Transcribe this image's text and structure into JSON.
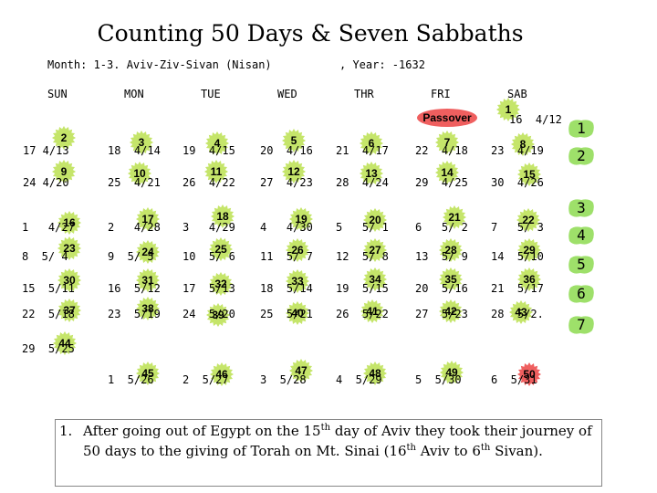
{
  "title": "Counting 50 Days & Seven Sabbaths",
  "month_label": "Month: 1-3. Aviv-Ziv-Sivan (Nisan)",
  "year_label": ", Year: -1632",
  "weekdays": [
    "SUN",
    "MON",
    "TUE",
    "WED",
    "THR",
    "FRI",
    "SAB"
  ],
  "passover": "Passover",
  "colors": {
    "star_green": "#c5e56a",
    "star_red": "#ef5f5f",
    "sabbath_green": "#9ee06a"
  },
  "counts": [
    {
      "n": "1",
      "date": "16  4/12",
      "red": false
    },
    {
      "n": "2",
      "date": "17 4/13",
      "red": false
    },
    {
      "n": "3",
      "date": "18  4/14",
      "red": false
    },
    {
      "n": "4",
      "date": "19  4/15",
      "red": false
    },
    {
      "n": "5",
      "date": "20  4/16",
      "red": false
    },
    {
      "n": "6",
      "date": "21  4/17",
      "red": false
    },
    {
      "n": "7",
      "date": "22  4/18",
      "red": false
    },
    {
      "n": "8",
      "date": "23  4/19",
      "red": false
    },
    {
      "n": "9",
      "date": "24 4/20",
      "red": false
    },
    {
      "n": "10",
      "date": "25  4/21",
      "red": false
    },
    {
      "n": "11",
      "date": "26  4/22",
      "red": false
    },
    {
      "n": "12",
      "date": "27  4/23",
      "red": false
    },
    {
      "n": "13",
      "date": "28  4/24",
      "red": false
    },
    {
      "n": "14",
      "date": "29  4/25",
      "red": false
    },
    {
      "n": "15",
      "date": "30  4/26",
      "red": false
    },
    {
      "n": "16",
      "date": "1   4/27",
      "red": false
    },
    {
      "n": "17",
      "date": "2   4/28",
      "red": false
    },
    {
      "n": "18",
      "date": "3   4/29",
      "red": false
    },
    {
      "n": "19",
      "date": "4   4/30",
      "red": false
    },
    {
      "n": "20",
      "date": "5   5/ 1",
      "red": false
    },
    {
      "n": "21",
      "date": "6   5/ 2",
      "red": false
    },
    {
      "n": "22",
      "date": "7   5/ 3",
      "red": false
    },
    {
      "n": "23",
      "date": "8  5/ 4",
      "red": false
    },
    {
      "n": "24",
      "date": "9  5/ 5",
      "red": false
    },
    {
      "n": "25",
      "date": "10  5/ 6",
      "red": false
    },
    {
      "n": "26",
      "date": "11  5/ 7",
      "red": false
    },
    {
      "n": "27",
      "date": "12  5/ 8",
      "red": false
    },
    {
      "n": "28",
      "date": "13  5/ 9",
      "red": false
    },
    {
      "n": "29",
      "date": "14  5/10",
      "red": false
    },
    {
      "n": "30",
      "date": "15  5/11",
      "red": false
    },
    {
      "n": "31",
      "date": "16  5/12",
      "red": false
    },
    {
      "n": "32",
      "date": "17  5/13",
      "red": false
    },
    {
      "n": "33",
      "date": "18  5/14",
      "red": false
    },
    {
      "n": "34",
      "date": "19  5/15",
      "red": false
    },
    {
      "n": "35",
      "date": "20  5/16",
      "red": false
    },
    {
      "n": "36",
      "date": "21  5/17",
      "red": false
    },
    {
      "n": "37",
      "date": "22  5/18",
      "red": false
    },
    {
      "n": "38",
      "date": "23  5/19",
      "red": false
    },
    {
      "n": "39",
      "date": "24  5/20",
      "red": false
    },
    {
      "n": "40",
      "date": "25  5/21",
      "red": false
    },
    {
      "n": "41",
      "date": "26  5/22",
      "red": false
    },
    {
      "n": "42",
      "date": "27  5/23",
      "red": false
    },
    {
      "n": "43",
      "date": "28  5/2.",
      "red": false
    },
    {
      "n": "44",
      "date": "29  5/25",
      "red": false
    },
    {
      "n": "45",
      "date": "1  5/26",
      "red": false
    },
    {
      "n": "46",
      "date": "2  5/27",
      "red": false
    },
    {
      "n": "47",
      "date": "3  5/28",
      "red": false
    },
    {
      "n": "48",
      "date": "4  5/29",
      "red": false
    },
    {
      "n": "49",
      "date": "5  5/30",
      "red": false
    },
    {
      "n": "50",
      "date": "6  5/31",
      "red": true
    }
  ],
  "sabbaths": [
    "1",
    "2",
    "3",
    "4",
    "5",
    "6",
    "7"
  ],
  "footnote": {
    "num": "1.",
    "before15": "After going out of Egypt on the 15",
    "th1": "th",
    "mid": " day of Aviv they took their journey of 50 days to the giving of Torah on Mt. Sinai (16",
    "th2": "th",
    "mid2": " Aviv to 6",
    "th3": "th",
    "end": " Sivan)."
  }
}
